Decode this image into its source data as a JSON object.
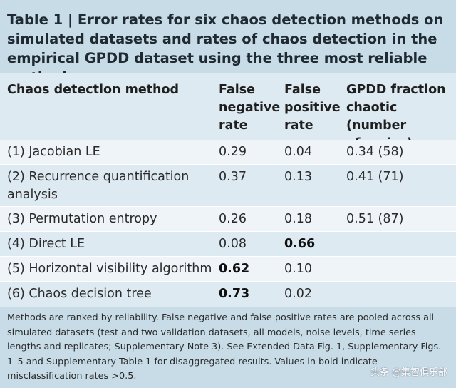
{
  "title": {
    "lead": "Table 1 |",
    "text": " Error rates for six chaos detection methods on simulated datasets and rates of chaos detection in the empirical GPDD dataset using the three most reliable methods"
  },
  "headers": {
    "method": "Chaos detection method",
    "fnr": "False\nnegative\nrate",
    "fpr": "False\npositive\nrate",
    "gpdd": "GPDD fraction\nchaotic (number\nof series)"
  },
  "rows": [
    {
      "method": "(1) Jacobian LE",
      "fnr": "0.29",
      "fpr": "0.04",
      "gpdd": "0.34 (58)"
    },
    {
      "method": "(2) Recurrence quantification\nanalysis",
      "fnr": "0.37",
      "fpr": "0.13",
      "gpdd": "0.41 (71)"
    },
    {
      "method": "(3) Permutation entropy",
      "fnr": "0.26",
      "fpr": "0.18",
      "gpdd": "0.51 (87)"
    },
    {
      "method": "(4) Direct LE",
      "fnr": "0.08",
      "fpr": "0.66",
      "gpdd": ""
    },
    {
      "method": "(5) Horizontal visibility algorithm",
      "fnr": "0.62",
      "fpr": "0.10",
      "gpdd": ""
    },
    {
      "method": "(6) Chaos decision tree",
      "fnr": "0.73",
      "fpr": "0.02",
      "gpdd": ""
    }
  ],
  "footnote": "Methods are ranked by reliability. False negative and false positive rates are pooled across all simulated datasets (test and two validation datasets, all models, noise levels, time series lengths and replicates; Supplementary Note 3). See Extended Data Fig. 1, Supplementary Figs. 1–5 and Supplementary Table 1 for disaggregated results. Values in bold indicate misclassification rates >0.5.",
  "watermark": "头条 @集智俱乐部",
  "colors": {
    "title_bg": "#c8dce8",
    "header_bg": "#deeaf2",
    "body_bg": "#eef4f8"
  }
}
